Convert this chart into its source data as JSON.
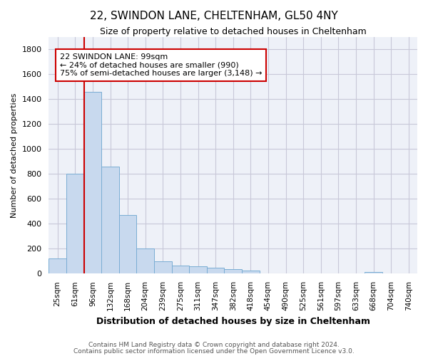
{
  "title1": "22, SWINDON LANE, CHELTENHAM, GL50 4NY",
  "title2": "Size of property relative to detached houses in Cheltenham",
  "xlabel": "Distribution of detached houses by size in Cheltenham",
  "ylabel": "Number of detached properties",
  "footer1": "Contains HM Land Registry data © Crown copyright and database right 2024.",
  "footer2": "Contains public sector information licensed under the Open Government Licence v3.0.",
  "annotation_line1": "22 SWINDON LANE: 99sqm",
  "annotation_line2": "← 24% of detached houses are smaller (990)",
  "annotation_line3": "75% of semi-detached houses are larger (3,148) →",
  "bar_color": "#c8d9ee",
  "bar_edge_color": "#7aadd4",
  "red_line_color": "#cc0000",
  "grid_color": "#c8c8d8",
  "background_color": "#eef1f8",
  "categories": [
    "25sqm",
    "61sqm",
    "96sqm",
    "132sqm",
    "168sqm",
    "204sqm",
    "239sqm",
    "275sqm",
    "311sqm",
    "347sqm",
    "382sqm",
    "418sqm",
    "454sqm",
    "490sqm",
    "525sqm",
    "561sqm",
    "597sqm",
    "633sqm",
    "668sqm",
    "704sqm",
    "740sqm"
  ],
  "values": [
    120,
    800,
    1460,
    860,
    470,
    200,
    100,
    65,
    60,
    45,
    35,
    25,
    0,
    0,
    0,
    0,
    0,
    0,
    15,
    0,
    0
  ],
  "red_line_index": 2,
  "ylim": [
    0,
    1900
  ],
  "yticks": [
    0,
    200,
    400,
    600,
    800,
    1000,
    1200,
    1400,
    1600,
    1800
  ]
}
